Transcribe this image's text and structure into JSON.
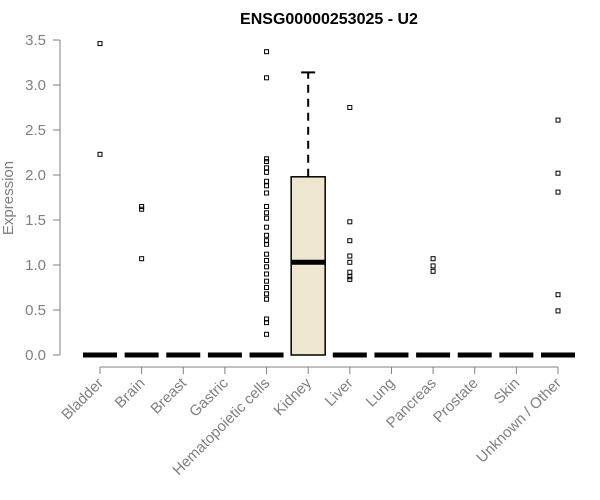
{
  "chart_data": {
    "type": "boxplot",
    "title": "ENSG00000253025 - U2",
    "ylabel": "Expression",
    "xlabel": "",
    "ylim": [
      0,
      3.5
    ],
    "yticks": [
      "0.0",
      "0.5",
      "1.0",
      "1.5",
      "2.0",
      "2.5",
      "3.0",
      "3.5"
    ],
    "categories": [
      "Bladder",
      "Brain",
      "Breast",
      "Gastric",
      "Hematopoietic cells",
      "Kidney",
      "Liver",
      "Lung",
      "Pancreas",
      "Prostate",
      "Skin",
      "Unknown / Other"
    ],
    "boxes": [
      {
        "category": "Bladder",
        "q1": 0,
        "median": 0,
        "q3": 0,
        "whisker_low": 0,
        "whisker_high": 0,
        "outliers": [
          3.46,
          2.23
        ]
      },
      {
        "category": "Brain",
        "q1": 0,
        "median": 0,
        "q3": 0,
        "whisker_low": 0,
        "whisker_high": 0,
        "outliers": [
          1.65,
          1.62,
          1.07
        ]
      },
      {
        "category": "Breast",
        "q1": 0,
        "median": 0,
        "q3": 0,
        "whisker_low": 0,
        "whisker_high": 0,
        "outliers": []
      },
      {
        "category": "Gastric",
        "q1": 0,
        "median": 0,
        "q3": 0,
        "whisker_low": 0,
        "whisker_high": 0,
        "outliers": []
      },
      {
        "category": "Hematopoietic cells",
        "q1": 0,
        "median": 0,
        "q3": 0,
        "whisker_low": 0,
        "whisker_high": 0,
        "outliers": [
          3.37,
          3.08,
          2.18,
          2.15,
          2.08,
          2.03,
          1.93,
          1.88,
          1.8,
          1.65,
          1.58,
          1.52,
          1.42,
          1.33,
          1.27,
          1.23,
          1.12,
          1.05,
          0.98,
          0.9,
          0.82,
          0.75,
          0.68,
          0.62,
          0.4,
          0.36,
          0.23
        ]
      },
      {
        "category": "Kidney",
        "q1": 0,
        "median": 1.03,
        "q3": 1.98,
        "whisker_low": 0,
        "whisker_high": 3.14,
        "outliers": []
      },
      {
        "category": "Liver",
        "q1": 0,
        "median": 0,
        "q3": 0,
        "whisker_low": 0,
        "whisker_high": 0,
        "outliers": [
          2.75,
          1.48,
          1.27,
          1.1,
          1.03,
          0.92,
          0.87,
          0.84
        ]
      },
      {
        "category": "Lung",
        "q1": 0,
        "median": 0,
        "q3": 0,
        "whisker_low": 0,
        "whisker_high": 0,
        "outliers": []
      },
      {
        "category": "Pancreas",
        "q1": 0,
        "median": 0,
        "q3": 0,
        "whisker_low": 0,
        "whisker_high": 0,
        "outliers": [
          1.07,
          0.99,
          0.93
        ]
      },
      {
        "category": "Prostate",
        "q1": 0,
        "median": 0,
        "q3": 0,
        "whisker_low": 0,
        "whisker_high": 0,
        "outliers": []
      },
      {
        "category": "Skin",
        "q1": 0,
        "median": 0,
        "q3": 0,
        "whisker_low": 0,
        "whisker_high": 0,
        "outliers": []
      },
      {
        "category": "Unknown / Other",
        "q1": 0,
        "median": 0,
        "q3": 0,
        "whisker_low": 0,
        "whisker_high": 0,
        "outliers": [
          2.61,
          2.02,
          1.81,
          0.67,
          0.49
        ]
      }
    ],
    "box_fill": "#ede7cf",
    "grid": false,
    "legend": "none"
  }
}
